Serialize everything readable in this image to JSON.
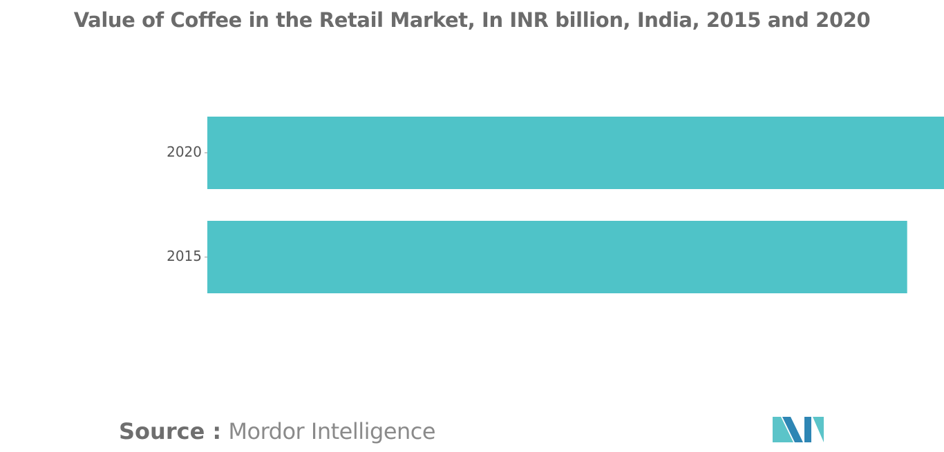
{
  "chart_data": {
    "type": "bar",
    "orientation": "horizontal",
    "title": "Value of Coffee in the Retail Market, In INR billion, India, 2015 and 2020",
    "categories": [
      "2020",
      "2015"
    ],
    "values": [
      100,
      95
    ],
    "xlim": [
      0,
      100
    ],
    "xlabel": "",
    "ylabel": "",
    "grid": false,
    "legend": "none",
    "bar_color": "#4fc3c8"
  },
  "footer": {
    "source_prefix": "Source :",
    "source_name": "Mordor Intelligence"
  },
  "logo": {
    "name": "mordor-intelligence-logo",
    "colors": [
      "#2e86b4",
      "#5bc4c9"
    ]
  }
}
